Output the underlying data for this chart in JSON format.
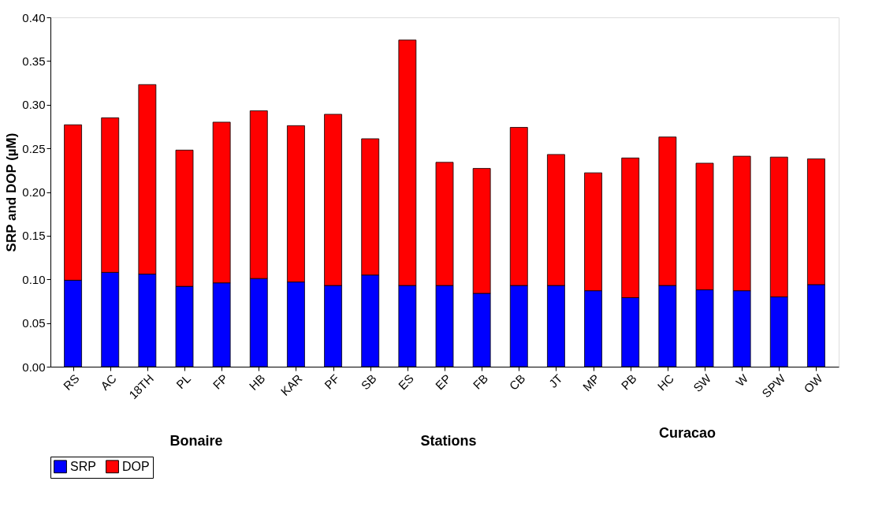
{
  "chart_data": {
    "type": "bar",
    "stacked": true,
    "ylabel": "SRP and DOP (µM)",
    "categories": [
      "RS",
      "AC",
      "18TH",
      "PL",
      "FP",
      "HB",
      "KAR",
      "PF",
      "SB",
      "ES",
      "EP",
      "FB",
      "CB",
      "JT",
      "MP",
      "PB",
      "HC",
      "SW",
      "W",
      "SPW",
      "OW"
    ],
    "series": [
      {
        "name": "SRP",
        "color": "#0000ff",
        "values": [
          0.099,
          0.108,
          0.106,
          0.092,
          0.096,
          0.101,
          0.097,
          0.093,
          0.105,
          0.093,
          0.093,
          0.084,
          0.093,
          0.093,
          0.087,
          0.079,
          0.093,
          0.088,
          0.087,
          0.08,
          0.094
        ]
      },
      {
        "name": "DOP",
        "color": "#ff0000",
        "values": [
          0.178,
          0.177,
          0.217,
          0.156,
          0.184,
          0.192,
          0.179,
          0.196,
          0.156,
          0.281,
          0.141,
          0.143,
          0.181,
          0.15,
          0.135,
          0.16,
          0.17,
          0.145,
          0.154,
          0.16,
          0.144
        ]
      }
    ],
    "ylim": [
      0,
      0.4
    ],
    "yticks": [
      {
        "value": 0,
        "label": "0.00"
      },
      {
        "value": 0.05,
        "label": "0.05"
      },
      {
        "value": 0.1,
        "label": "0.10"
      },
      {
        "value": 0.15,
        "label": "0.15"
      },
      {
        "value": 0.2,
        "label": "0.20"
      },
      {
        "value": 0.25,
        "label": "0.25"
      },
      {
        "value": 0.3,
        "label": "0.30"
      },
      {
        "value": 0.35,
        "label": "0.35"
      },
      {
        "value": 0.4,
        "label": "0.40"
      }
    ],
    "grid": false,
    "legend": "bottom",
    "annotations": [
      "Bonaire",
      "Stations",
      "Curacao"
    ]
  }
}
